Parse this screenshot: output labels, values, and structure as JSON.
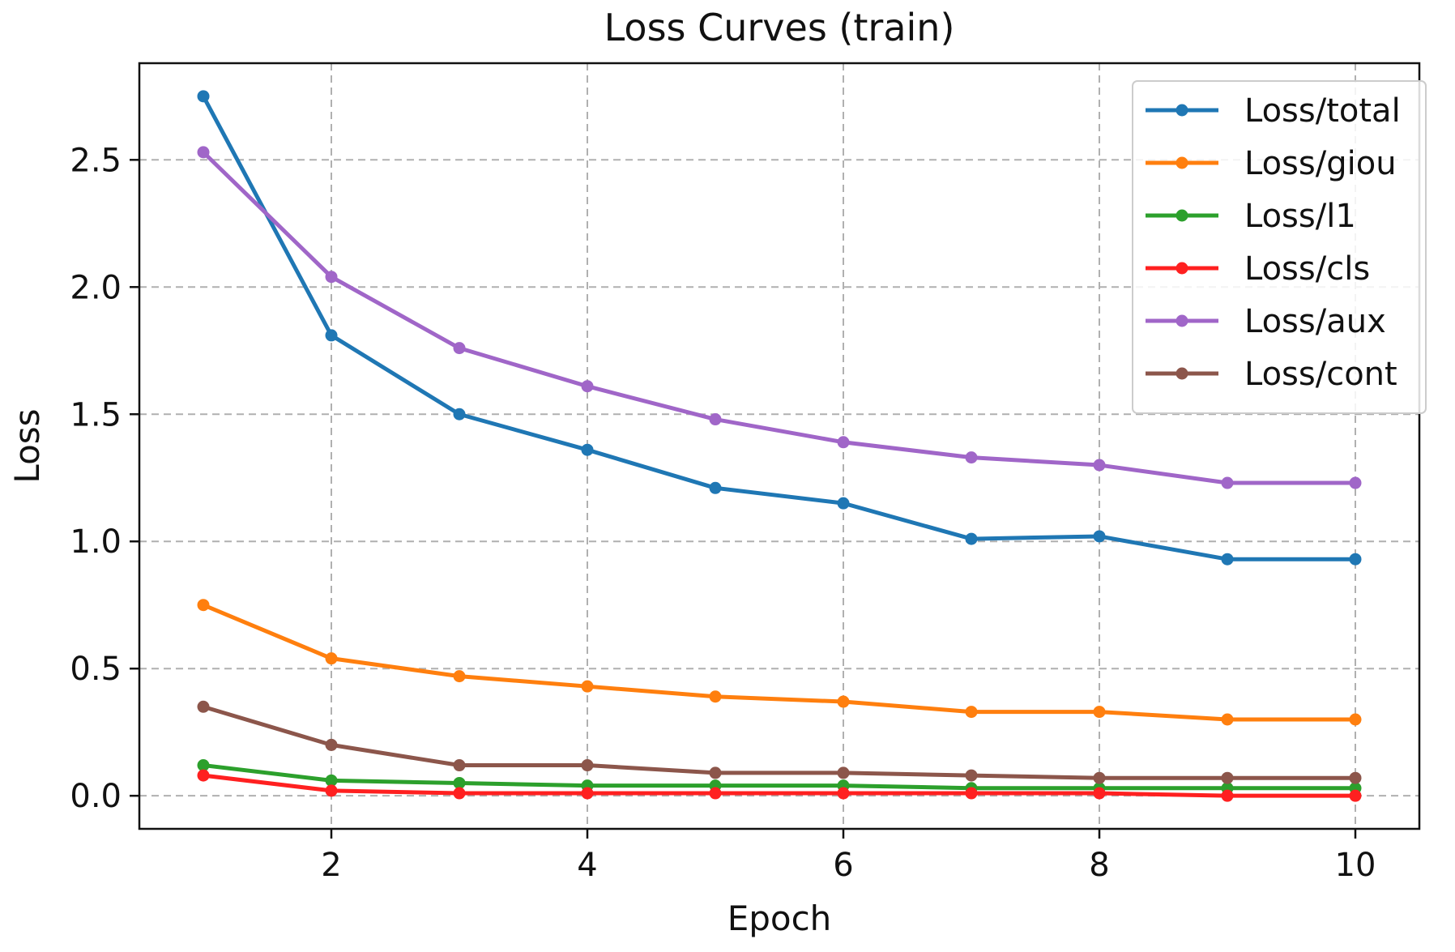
{
  "chart_data": {
    "type": "line",
    "title": "Loss Curves (train)",
    "xlabel": "Epoch",
    "ylabel": "Loss",
    "x": [
      1,
      2,
      3,
      4,
      5,
      6,
      7,
      8,
      9,
      10
    ],
    "xlim": [
      0.5,
      10.5
    ],
    "ylim": [
      -0.13,
      2.88
    ],
    "xticks": [
      2,
      4,
      6,
      8,
      10
    ],
    "yticks": [
      0.0,
      0.5,
      1.0,
      1.5,
      2.0,
      2.5
    ],
    "xtick_labels": [
      "2",
      "4",
      "6",
      "8",
      "10"
    ],
    "ytick_labels": [
      "0.0",
      "0.5",
      "1.0",
      "1.5",
      "2.0",
      "2.5"
    ],
    "grid": true,
    "legend_position": "top-right",
    "series": [
      {
        "name": "Loss/total",
        "color": "#1f77b4",
        "values": [
          2.75,
          1.81,
          1.5,
          1.36,
          1.21,
          1.15,
          1.01,
          1.02,
          0.93,
          0.93
        ]
      },
      {
        "name": "Loss/giou",
        "color": "#ff7f0e",
        "values": [
          0.75,
          0.54,
          0.47,
          0.43,
          0.39,
          0.37,
          0.33,
          0.33,
          0.3,
          0.3
        ]
      },
      {
        "name": "Loss/l1",
        "color": "#2ca02c",
        "values": [
          0.12,
          0.06,
          0.05,
          0.04,
          0.04,
          0.04,
          0.03,
          0.03,
          0.03,
          0.03
        ]
      },
      {
        "name": "Loss/cls",
        "color": "#ff2020",
        "values": [
          0.08,
          0.02,
          0.01,
          0.01,
          0.01,
          0.01,
          0.01,
          0.01,
          0.0,
          0.0
        ]
      },
      {
        "name": "Loss/aux",
        "color": "#a066c8",
        "values": [
          2.53,
          2.04,
          1.76,
          1.61,
          1.48,
          1.39,
          1.33,
          1.3,
          1.23,
          1.23
        ]
      },
      {
        "name": "Loss/cont",
        "color": "#8c564b",
        "values": [
          0.35,
          0.2,
          0.12,
          0.12,
          0.09,
          0.09,
          0.08,
          0.07,
          0.07,
          0.07
        ]
      }
    ]
  }
}
